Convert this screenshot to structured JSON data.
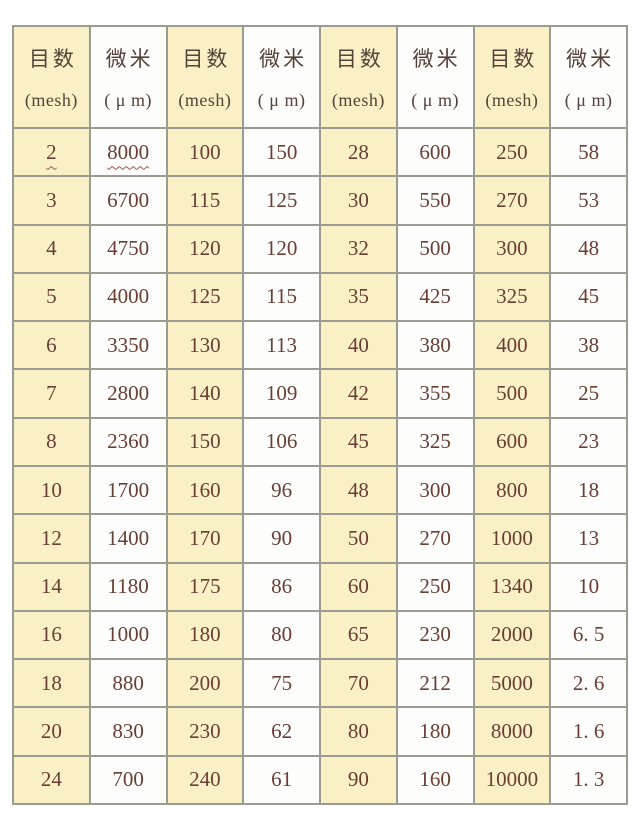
{
  "table": {
    "description_columns_note": "4 repeated pairs of mesh/micron columns",
    "columns": [
      {
        "type": "mesh",
        "label_cn": "目数",
        "label_en": "(mesh)"
      },
      {
        "type": "micron",
        "label_cn": "微米",
        "label_en": "( μ m)"
      },
      {
        "type": "mesh",
        "label_cn": "目数",
        "label_en": "(mesh)"
      },
      {
        "type": "micron",
        "label_cn": "微米",
        "label_en": "( μ m)"
      },
      {
        "type": "mesh",
        "label_cn": "目数",
        "label_en": "(mesh)"
      },
      {
        "type": "micron",
        "label_cn": "微米",
        "label_en": "( μ m)"
      },
      {
        "type": "mesh",
        "label_cn": "目数",
        "label_en": "(mesh)"
      },
      {
        "type": "micron",
        "label_cn": "微米",
        "label_en": "( μ m)"
      }
    ],
    "rows": [
      [
        "2",
        "8000",
        "100",
        "150",
        "28",
        "600",
        "250",
        "58"
      ],
      [
        "3",
        "6700",
        "115",
        "125",
        "30",
        "550",
        "270",
        "53"
      ],
      [
        "4",
        "4750",
        "120",
        "120",
        "32",
        "500",
        "300",
        "48"
      ],
      [
        "5",
        "4000",
        "125",
        "115",
        "35",
        "425",
        "325",
        "45"
      ],
      [
        "6",
        "3350",
        "130",
        "113",
        "40",
        "380",
        "400",
        "38"
      ],
      [
        "7",
        "2800",
        "140",
        "109",
        "42",
        "355",
        "500",
        "25"
      ],
      [
        "8",
        "2360",
        "150",
        "106",
        "45",
        "325",
        "600",
        "23"
      ],
      [
        "10",
        "1700",
        "160",
        "96",
        "48",
        "300",
        "800",
        "18"
      ],
      [
        "12",
        "1400",
        "170",
        "90",
        "50",
        "270",
        "1000",
        "13"
      ],
      [
        "14",
        "1180",
        "175",
        "86",
        "60",
        "250",
        "1340",
        "10"
      ],
      [
        "16",
        "1000",
        "180",
        "80",
        "65",
        "230",
        "2000",
        "6. 5"
      ],
      [
        "18",
        "880",
        "200",
        "75",
        "70",
        "212",
        "5000",
        "2. 6"
      ],
      [
        "20",
        "830",
        "230",
        "62",
        "80",
        "180",
        "8000",
        "1. 6"
      ],
      [
        "24",
        "700",
        "240",
        "61",
        "90",
        "160",
        "10000",
        "1. 3"
      ]
    ],
    "wavy_underline_cells": [
      [
        0,
        0
      ],
      [
        0,
        1
      ]
    ]
  },
  "colors": {
    "page_bg": "#ffffff",
    "mesh_column_bg": "#faf0c6",
    "micron_column_bg": "#fdfdfb",
    "text": "#693e34",
    "header_text": "#56423a",
    "border": "#9c9b92",
    "wavy_underline": "#a0524a"
  }
}
